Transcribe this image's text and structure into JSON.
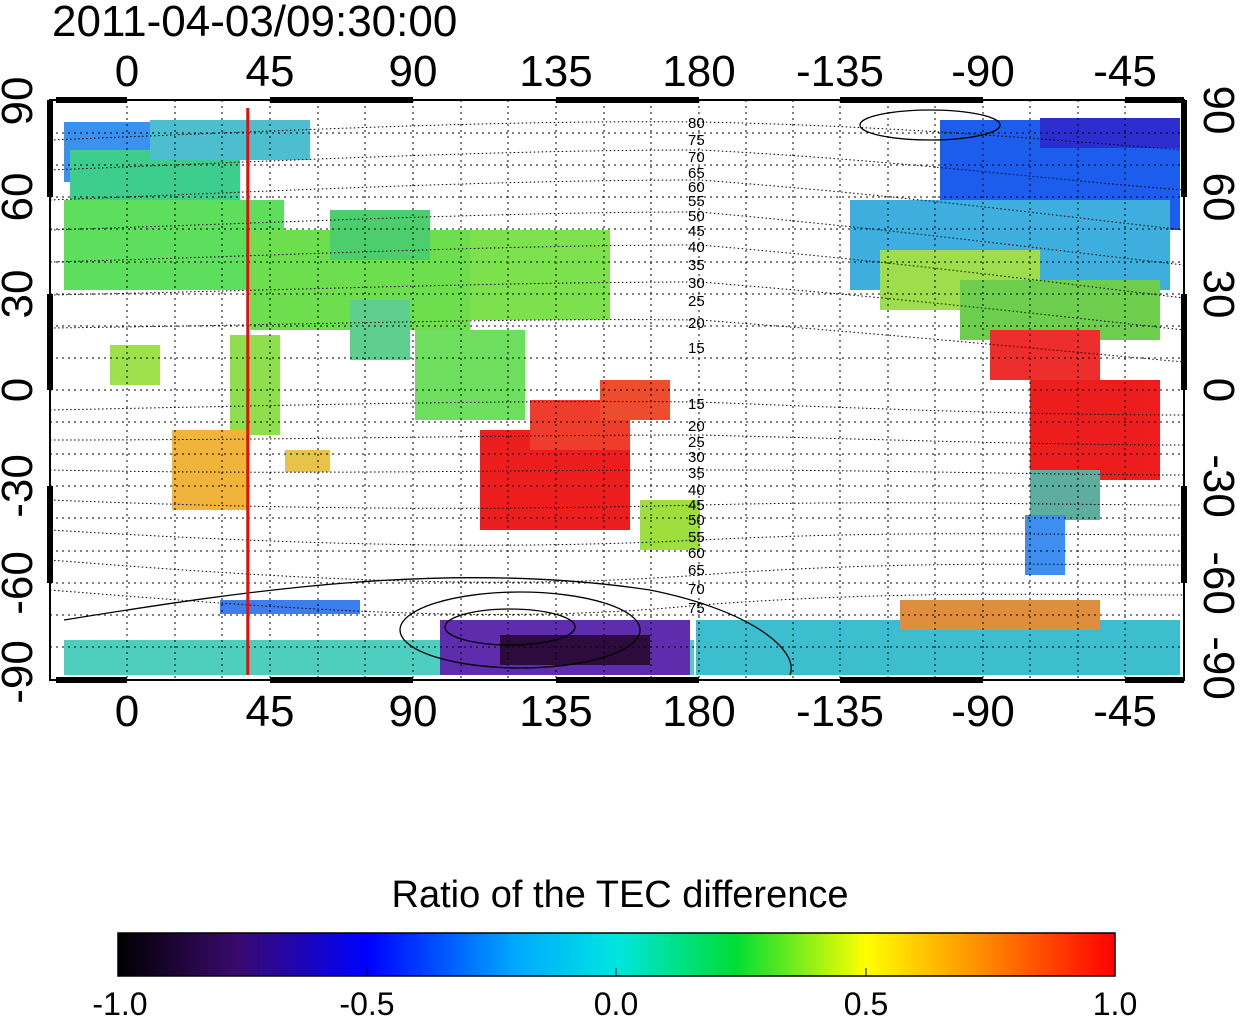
{
  "title": "2011-04-03/09:30:00",
  "map": {
    "lon_ticks": [
      "0",
      "45",
      "90",
      "135",
      "180",
      "-135",
      "-90",
      "-45"
    ],
    "lat_ticks_left": [
      "90",
      "60",
      "30",
      "0",
      "-30",
      "-60",
      "-90"
    ],
    "lat_ticks_right": [
      "90",
      "60",
      "30",
      "0",
      "-30",
      "-60",
      "-90"
    ],
    "contour_labels_north": [
      "80",
      "75",
      "70",
      "65",
      "60",
      "55",
      "50",
      "45",
      "40",
      "35",
      "30",
      "25",
      "20",
      "15"
    ],
    "contour_labels_south": [
      "15",
      "20",
      "25",
      "30",
      "35",
      "40",
      "45",
      "50",
      "55",
      "60",
      "65",
      "70",
      "75"
    ],
    "marker_longitude": 38,
    "marker_color": "#e01010"
  },
  "colorbar": {
    "title": "Ratio of the TEC difference",
    "ticks": [
      "-1.0",
      "-0.5",
      "0.0",
      "0.5",
      "1.0"
    ],
    "range": [
      -1.0,
      1.0
    ],
    "colormap": [
      "#000000",
      "#3a0a6e",
      "#0000ff",
      "#00e5ff",
      "#00dd33",
      "#ffff00",
      "#ff8800",
      "#ff0000"
    ]
  }
}
